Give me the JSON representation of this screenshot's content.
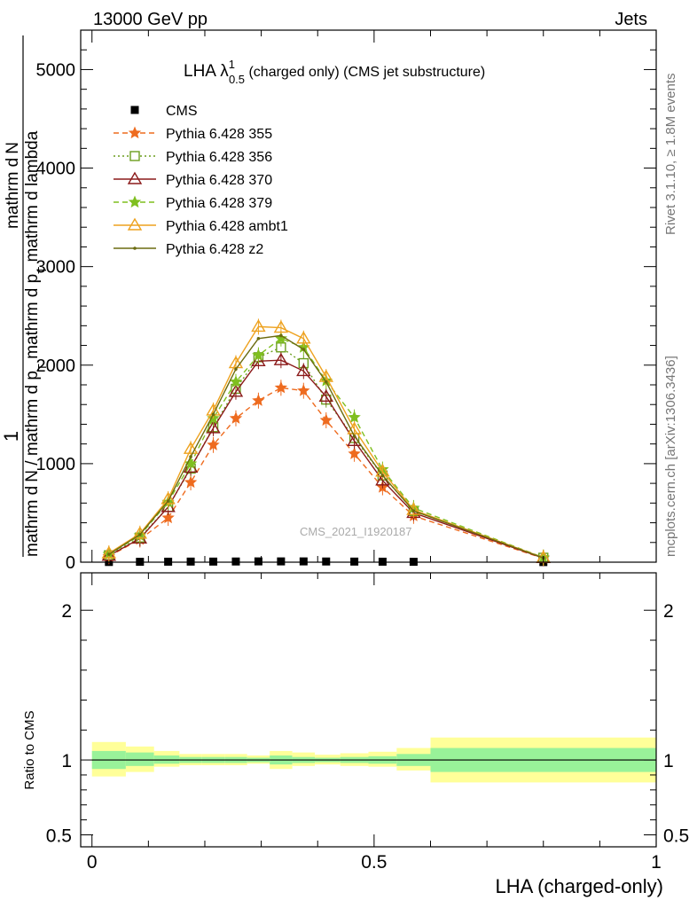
{
  "header": {
    "left": "13000 GeV pp",
    "right": "Jets"
  },
  "side_labels": {
    "rivet": "Rivet 3.1.10, ≥ 1.8M events",
    "mcplots": "mcplots.cern.ch [arXiv:1306.3436]"
  },
  "watermark": "CMS_2021_I1920187",
  "chart_data": [
    {
      "type": "line",
      "title": "LHA λ",
      "title_superscript": "1",
      "title_subscript": "0.5",
      "title_suffix": " (charged only) (CMS jet substructure)",
      "ylabel_top": "1",
      "ylabel_parts": [
        "mathrm d",
        "N",
        " / mathrm d p",
        "T",
        " mathrm d p",
        "T",
        " mathrm d lambda",
        "mathrm d",
        "N"
      ],
      "ylim": [
        0,
        5400
      ],
      "yticks": [
        0,
        1000,
        2000,
        3000,
        4000,
        5000
      ],
      "ytick_labels": [
        "0",
        "1000",
        "2000",
        "3000",
        "4000",
        "5000"
      ],
      "xlim": [
        -0.02,
        1.0
      ],
      "x": [
        0.03,
        0.085,
        0.135,
        0.175,
        0.215,
        0.255,
        0.295,
        0.335,
        0.375,
        0.415,
        0.465,
        0.515,
        0.57,
        0.8
      ],
      "series": [
        {
          "name": "CMS",
          "color": "#000000",
          "marker": "square",
          "dash": "none",
          "values": [
            2,
            4,
            5,
            6,
            6,
            7,
            8,
            8,
            8,
            7,
            6,
            5,
            4,
            1
          ]
        },
        {
          "name": "Pythia 6.428 355",
          "color": "#ee6b1f",
          "marker": "star",
          "dash": "dashed",
          "values": [
            60,
            230,
            450,
            810,
            1190,
            1460,
            1640,
            1770,
            1740,
            1440,
            1100,
            760,
            470,
            40
          ]
        },
        {
          "name": "Pythia 6.428 356",
          "color": "#6b9e1f",
          "marker": "open-square",
          "dash": "dotted",
          "values": [
            70,
            250,
            560,
            950,
            1370,
            1760,
            2080,
            2180,
            2020,
            1650,
            1260,
            880,
            520,
            45
          ]
        },
        {
          "name": "Pythia 6.428 370",
          "color": "#8b1a1a",
          "marker": "open-triangle",
          "dash": "none",
          "values": [
            65,
            240,
            560,
            960,
            1360,
            1730,
            2040,
            2050,
            1940,
            1680,
            1230,
            830,
            500,
            42
          ]
        },
        {
          "name": "Pythia 6.428 379",
          "color": "#7fbf1f",
          "marker": "star",
          "dash": "dashed",
          "values": [
            80,
            270,
            610,
            1000,
            1460,
            1830,
            2100,
            2270,
            2180,
            1840,
            1470,
            940,
            550,
            48
          ]
        },
        {
          "name": "Pythia 6.428 ambt1",
          "color": "#eea21f",
          "marker": "open-triangle",
          "dash": "none",
          "values": [
            90,
            290,
            640,
            1150,
            1540,
            2020,
            2390,
            2380,
            2270,
            1880,
            1350,
            920,
            530,
            46
          ]
        },
        {
          "name": "Pythia 6.428 z2",
          "color": "#6b6b10",
          "marker": "dot",
          "dash": "none",
          "values": [
            80,
            280,
            620,
            1070,
            1500,
            1960,
            2270,
            2300,
            2160,
            1830,
            1280,
            880,
            520,
            44
          ]
        }
      ]
    },
    {
      "type": "area",
      "ylabel": "Ratio to CMS",
      "xlabel": "LHA (charged-only)",
      "xlim": [
        -0.02,
        1.0
      ],
      "xticks": [
        0,
        0.5,
        1
      ],
      "xtick_labels": [
        "0",
        "0.5",
        "1"
      ],
      "ylim": [
        0.42,
        2.25
      ],
      "yticks": [
        0.5,
        1,
        2
      ],
      "ytick_labels": [
        "0.5",
        "1",
        "2"
      ],
      "bands": [
        {
          "x0": 0.0,
          "x1": 0.06,
          "inner": [
            0.94,
            1.06
          ],
          "outer": [
            0.89,
            1.12
          ]
        },
        {
          "x0": 0.06,
          "x1": 0.11,
          "inner": [
            0.96,
            1.05
          ],
          "outer": [
            0.92,
            1.09
          ]
        },
        {
          "x0": 0.11,
          "x1": 0.155,
          "inner": [
            0.975,
            1.03
          ],
          "outer": [
            0.955,
            1.06
          ]
        },
        {
          "x0": 0.155,
          "x1": 0.195,
          "inner": [
            0.98,
            1.02
          ],
          "outer": [
            0.965,
            1.04
          ]
        },
        {
          "x0": 0.195,
          "x1": 0.235,
          "inner": [
            0.98,
            1.02
          ],
          "outer": [
            0.965,
            1.04
          ]
        },
        {
          "x0": 0.235,
          "x1": 0.275,
          "inner": [
            0.98,
            1.02
          ],
          "outer": [
            0.965,
            1.04
          ]
        },
        {
          "x0": 0.275,
          "x1": 0.315,
          "inner": [
            0.985,
            1.015
          ],
          "outer": [
            0.975,
            1.03
          ]
        },
        {
          "x0": 0.315,
          "x1": 0.355,
          "inner": [
            0.97,
            1.03
          ],
          "outer": [
            0.94,
            1.06
          ]
        },
        {
          "x0": 0.355,
          "x1": 0.395,
          "inner": [
            0.98,
            1.02
          ],
          "outer": [
            0.96,
            1.05
          ]
        },
        {
          "x0": 0.395,
          "x1": 0.44,
          "inner": [
            0.985,
            1.015
          ],
          "outer": [
            0.97,
            1.035
          ]
        },
        {
          "x0": 0.44,
          "x1": 0.49,
          "inner": [
            0.98,
            1.02
          ],
          "outer": [
            0.96,
            1.045
          ]
        },
        {
          "x0": 0.49,
          "x1": 0.54,
          "inner": [
            0.975,
            1.025
          ],
          "outer": [
            0.955,
            1.055
          ]
        },
        {
          "x0": 0.54,
          "x1": 0.6,
          "inner": [
            0.96,
            1.04
          ],
          "outer": [
            0.93,
            1.08
          ]
        },
        {
          "x0": 0.6,
          "x1": 1.0,
          "inner": [
            0.92,
            1.08
          ],
          "outer": [
            0.85,
            1.15
          ]
        }
      ],
      "inner_color": "#99f299",
      "outer_color": "#ffff99",
      "reference": 1
    }
  ]
}
